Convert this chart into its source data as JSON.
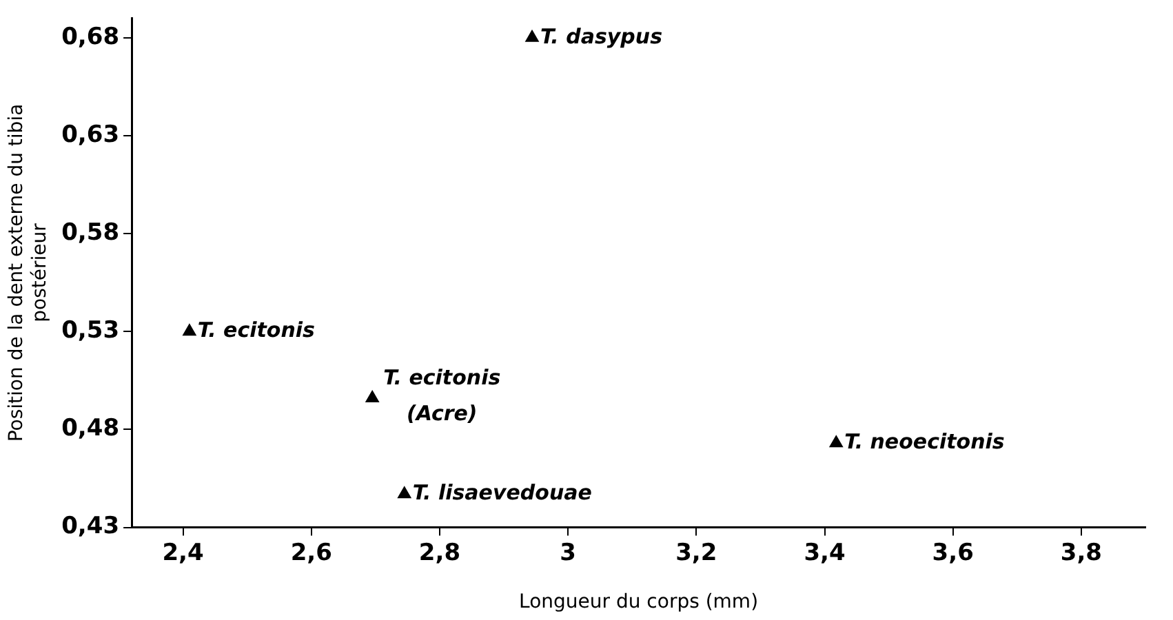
{
  "chart_data": {
    "type": "scatter",
    "xlabel": "Longueur du corps (mm)",
    "ylabel": "Position de la dent externe du tibia\npostérieur",
    "x": [
      2.944,
      2.41,
      2.695,
      2.745,
      3.418
    ],
    "values": [
      0.68,
      0.53,
      0.496,
      0.447,
      0.473
    ],
    "color": "#000000",
    "marker": "triangle",
    "grid": false,
    "legend": false,
    "xlim": [
      2.32,
      3.9
    ],
    "ylim": [
      0.43,
      0.69
    ],
    "xticks": [
      {
        "value": 2.4,
        "label": "2,4"
      },
      {
        "value": 2.6,
        "label": "2,6"
      },
      {
        "value": 2.8,
        "label": "2,8"
      },
      3,
      {
        "value": 3.2,
        "label": "3,2"
      },
      {
        "value": 3.4,
        "label": "3,4"
      },
      {
        "value": 3.6,
        "label": "3,6"
      },
      {
        "value": 3.8,
        "label": "3,8"
      }
    ],
    "yticks": [
      {
        "value": 0.43,
        "label": "0,43"
      },
      {
        "value": 0.48,
        "label": "0,48"
      },
      {
        "value": 0.53,
        "label": "0,53"
      },
      {
        "value": 0.58,
        "label": "0,58"
      },
      {
        "value": 0.63,
        "label": "0,63"
      },
      {
        "value": 0.68,
        "label": "0,68"
      }
    ],
    "annotations": [
      {
        "text": "T. dasypus",
        "x": 2.944,
        "y": 0.68
      },
      {
        "text": "T. ecitonis",
        "x": 2.41,
        "y": 0.53
      },
      {
        "text": "T. ecitonis\n(Acre)",
        "x": 2.695,
        "y": 0.496
      },
      {
        "text": "T. lisaevedouae",
        "x": 2.745,
        "y": 0.447
      },
      {
        "text": "T. neoecitonis",
        "x": 3.418,
        "y": 0.473
      }
    ]
  }
}
